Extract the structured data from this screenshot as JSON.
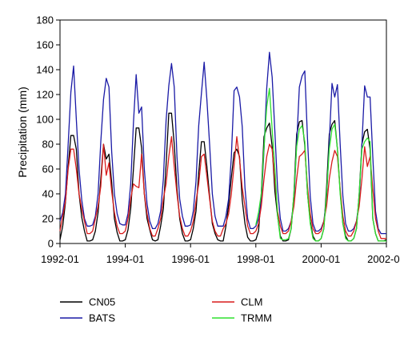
{
  "chart_data": {
    "type": "line",
    "xlabel": "",
    "ylabel": "Precipitation (mm)",
    "ylim": [
      0,
      180
    ],
    "yticks": [
      0,
      20,
      40,
      60,
      80,
      100,
      120,
      140,
      160,
      180
    ],
    "xlim": [
      "1992-01",
      "2002-01"
    ],
    "xticks": [
      "1992-01",
      "1994-01",
      "1996-01",
      "1998-01",
      "2000-01",
      "2002-01"
    ],
    "grid": false,
    "legend_position": "bottom",
    "series": [
      {
        "name": "CN05",
        "color": "#000000",
        "start": "1992-01",
        "values": [
          3,
          14,
          33,
          62,
          87,
          87,
          76,
          40,
          21,
          10,
          2,
          2,
          3,
          10,
          25,
          52,
          80,
          68,
          72,
          49,
          20,
          9,
          2,
          2,
          3,
          11,
          28,
          60,
          93,
          93,
          77,
          40,
          20,
          11,
          3,
          2,
          3,
          14,
          28,
          63,
          105,
          105,
          80,
          44,
          20,
          8,
          2,
          2,
          3,
          12,
          26,
          57,
          82,
          82,
          62,
          38,
          16,
          8,
          3,
          2,
          2,
          14,
          31,
          53,
          73,
          76,
          70,
          35,
          16,
          5,
          2,
          2,
          3,
          10,
          40,
          86,
          93,
          97,
          78,
          42,
          22,
          6,
          2,
          2,
          3,
          12,
          40,
          88,
          98,
          99,
          79,
          40,
          18,
          6,
          2,
          2,
          4,
          12,
          45,
          88,
          96,
          99,
          76,
          42,
          16,
          6,
          2,
          2,
          4,
          12,
          40,
          80,
          90,
          92,
          76,
          20,
          8,
          2,
          2,
          2,
          3
        ]
      },
      {
        "name": "BATS",
        "color": "#1a1aa6",
        "start": "1992-01",
        "values": [
          18,
          25,
          40,
          80,
          122,
          143,
          100,
          60,
          35,
          20,
          14,
          14,
          15,
          22,
          40,
          82,
          116,
          133,
          126,
          74,
          40,
          24,
          16,
          15,
          15,
          24,
          48,
          97,
          136,
          105,
          110,
          60,
          32,
          18,
          12,
          12,
          16,
          26,
          52,
          99,
          127,
          145,
          126,
          70,
          36,
          22,
          14,
          14,
          15,
          26,
          50,
          95,
          121,
          146,
          116,
          80,
          40,
          22,
          14,
          14,
          14,
          22,
          36,
          70,
          123,
          126,
          118,
          94,
          45,
          20,
          12,
          12,
          14,
          20,
          34,
          75,
          125,
          154,
          134,
          90,
          44,
          20,
          10,
          10,
          12,
          18,
          34,
          80,
          126,
          135,
          139,
          84,
          38,
          16,
          10,
          10,
          12,
          18,
          36,
          82,
          129,
          118,
          128,
          80,
          38,
          16,
          10,
          10,
          12,
          18,
          34,
          80,
          127,
          118,
          118,
          70,
          26,
          12,
          8,
          8,
          8
        ]
      },
      {
        "name": "CLM",
        "color": "#d91c1c",
        "start": "1992-01",
        "values": [
          10,
          22,
          34,
          60,
          76,
          76,
          60,
          40,
          28,
          18,
          8,
          8,
          10,
          20,
          30,
          46,
          80,
          55,
          65,
          42,
          25,
          14,
          8,
          8,
          10,
          20,
          36,
          48,
          46,
          45,
          72,
          40,
          24,
          12,
          6,
          6,
          12,
          20,
          36,
          48,
          70,
          86,
          62,
          40,
          22,
          12,
          6,
          6,
          10,
          18,
          34,
          48,
          70,
          72,
          54,
          36,
          18,
          10,
          6,
          6,
          12,
          16,
          24,
          40,
          63,
          86,
          68,
          45,
          30,
          14,
          8,
          8,
          10,
          16,
          30,
          52,
          70,
          80,
          76,
          50,
          26,
          14,
          8,
          8,
          10,
          18,
          30,
          52,
          70,
          72,
          75,
          46,
          24,
          12,
          8,
          8,
          10,
          18,
          30,
          52,
          66,
          75,
          70,
          44,
          22,
          10,
          6,
          6,
          10,
          18,
          30,
          52,
          78,
          62,
          70,
          44,
          20,
          10,
          4,
          4,
          4
        ]
      },
      {
        "name": "TRMM",
        "color": "#2ee02e",
        "start": "1998-01",
        "values": [
          15,
          25,
          40,
          77,
          110,
          125,
          92,
          60,
          22,
          4,
          3,
          3,
          4,
          12,
          40,
          78,
          92,
          95,
          82,
          40,
          16,
          4,
          2,
          2,
          4,
          12,
          40,
          76,
          92,
          96,
          76,
          40,
          16,
          4,
          2,
          2,
          4,
          12,
          40,
          76,
          82,
          85,
          82,
          20,
          8,
          2,
          2,
          2,
          2
        ]
      }
    ]
  }
}
